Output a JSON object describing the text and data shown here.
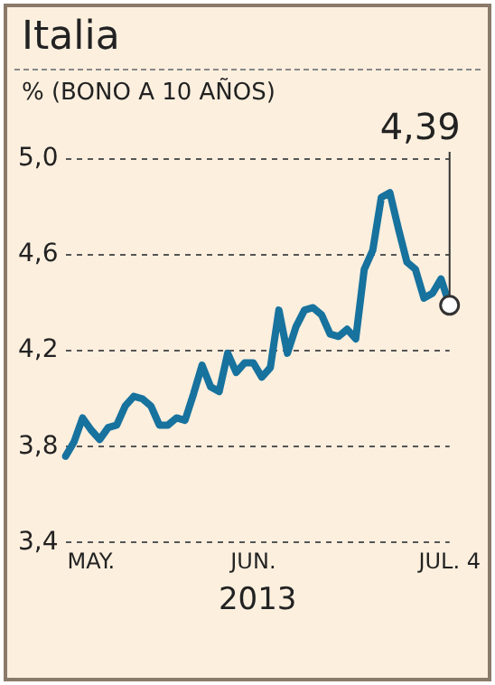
{
  "chart_data": {
    "type": "line",
    "title": "Italia",
    "subtitle": "% (BONO A 10 AÑOS)",
    "xlabel": "2013",
    "categories": [
      null,
      null,
      null,
      "MAY.",
      null,
      null,
      null,
      null,
      null,
      null,
      null,
      null,
      null,
      null,
      null,
      null,
      null,
      null,
      null,
      null,
      null,
      null,
      "JUN.",
      null,
      null,
      null,
      null,
      null,
      null,
      null,
      null,
      null,
      null,
      null,
      null,
      null,
      null,
      null,
      null,
      null,
      null,
      null,
      null,
      null,
      null,
      "JUL. 4"
    ],
    "series": [
      {
        "color": "#17729e",
        "values": [
          3.76,
          3.82,
          3.92,
          3.87,
          3.83,
          3.88,
          3.89,
          3.97,
          4.01,
          4.0,
          3.97,
          3.89,
          3.89,
          3.92,
          3.91,
          4.02,
          4.14,
          4.05,
          4.03,
          4.19,
          4.11,
          4.15,
          4.15,
          4.09,
          4.13,
          4.37,
          4.19,
          4.3,
          4.37,
          4.38,
          4.35,
          4.27,
          4.26,
          4.29,
          4.25,
          4.54,
          4.62,
          4.84,
          4.86,
          4.71,
          4.57,
          4.54,
          4.42,
          4.44,
          4.5,
          4.39
        ]
      }
    ],
    "ylim": [
      3.4,
      5.0
    ],
    "yticks": [
      {
        "value": 3.4,
        "label": "3,4"
      },
      {
        "value": 3.8,
        "label": "3,8"
      },
      {
        "value": 4.2,
        "label": "4,2"
      },
      {
        "value": 4.6,
        "label": "4,6"
      },
      {
        "value": 5.0,
        "label": "5,0"
      }
    ],
    "grid": "y",
    "legend": false,
    "marker": "none",
    "line_style": "solid",
    "annotations": [
      {
        "text": "4,39",
        "x": "JUL. 4",
        "y": 4.39
      }
    ]
  }
}
